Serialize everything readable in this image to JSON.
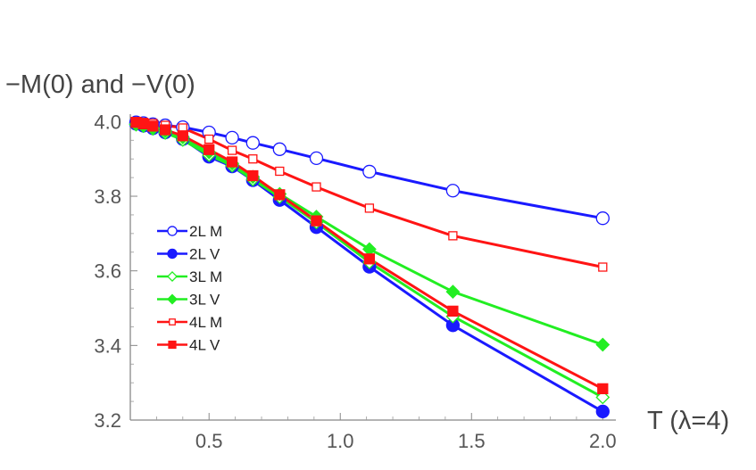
{
  "chart_data": {
    "type": "line",
    "ylabel": "−M(0) and −V(0)",
    "xlabel": "T (λ=4)",
    "xlim": [
      0.2,
      2.05
    ],
    "ylim": [
      3.2,
      4.02
    ],
    "xticks": [
      0.5,
      1.0,
      1.5,
      2.0
    ],
    "xtick_labels": [
      "0.5",
      "1.0",
      "1.5",
      "2.0"
    ],
    "yticks": [
      3.2,
      3.4,
      3.6,
      3.8,
      4.0
    ],
    "ytick_labels": [
      "3.2",
      "3.4",
      "3.6",
      "3.8",
      "4.0"
    ],
    "grid": false,
    "legend_position": "left",
    "x": [
      0.222,
      0.25,
      0.286,
      0.333,
      0.4,
      0.5,
      0.588,
      0.667,
      0.769,
      0.909,
      1.111,
      1.429,
      2.0
    ],
    "series": [
      {
        "name": "2L M",
        "color": "#1a1aff",
        "marker": "circle-open",
        "values": [
          3.998,
          3.996,
          3.993,
          3.99,
          3.985,
          3.971,
          3.957,
          3.943,
          3.926,
          3.902,
          3.866,
          3.815,
          3.741
        ]
      },
      {
        "name": "2L V",
        "color": "#1a1aff",
        "marker": "circle-filled",
        "values": [
          3.994,
          3.989,
          3.982,
          3.971,
          3.953,
          3.906,
          3.88,
          3.843,
          3.79,
          3.717,
          3.611,
          3.454,
          3.223
        ]
      },
      {
        "name": "3L M",
        "color": "#22ee22",
        "marker": "diamond-open",
        "values": [
          3.992,
          3.988,
          3.981,
          3.97,
          3.951,
          3.91,
          3.882,
          3.845,
          3.798,
          3.73,
          3.623,
          3.478,
          3.261
        ]
      },
      {
        "name": "3L V",
        "color": "#22ee22",
        "marker": "diamond-filled",
        "values": [
          3.993,
          3.99,
          3.983,
          3.975,
          3.958,
          3.918,
          3.888,
          3.852,
          3.806,
          3.745,
          3.658,
          3.544,
          3.402
        ]
      },
      {
        "name": "4L M",
        "color": "#ff1414",
        "marker": "square-open",
        "values": [
          4.0,
          3.998,
          3.995,
          3.99,
          3.983,
          3.953,
          3.923,
          3.9,
          3.867,
          3.825,
          3.768,
          3.694,
          3.61
        ]
      },
      {
        "name": "4L V",
        "color": "#ff1414",
        "marker": "square-filled",
        "values": [
          3.998,
          3.994,
          3.988,
          3.978,
          3.962,
          3.925,
          3.892,
          3.855,
          3.804,
          3.734,
          3.632,
          3.492,
          3.284
        ]
      }
    ]
  }
}
